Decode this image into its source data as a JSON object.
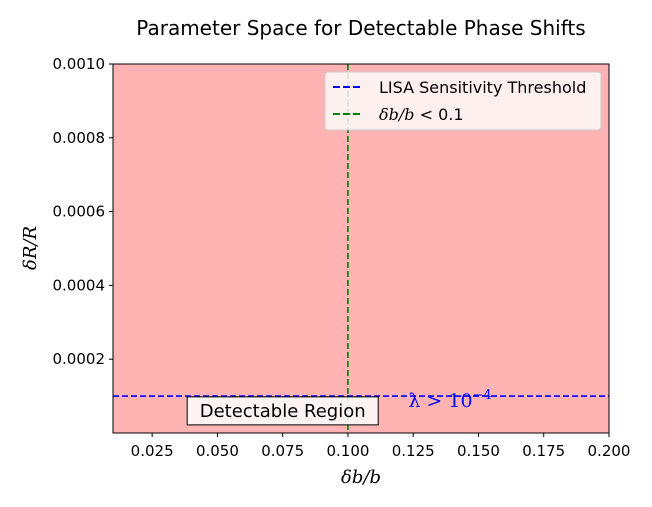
{
  "chart_data": {
    "type": "area",
    "title": "Parameter Space for Detectable Phase Shifts",
    "xlabel": "δb/b",
    "ylabel": "δR/R",
    "xlim": [
      0.01,
      0.2
    ],
    "ylim": [
      0.0,
      0.001
    ],
    "x_ticks": [
      0.025,
      0.05,
      0.075,
      0.1,
      0.125,
      0.15,
      0.175,
      0.2
    ],
    "x_tick_labels": [
      "0.025",
      "0.050",
      "0.075",
      "0.100",
      "0.125",
      "0.150",
      "0.175",
      "0.200"
    ],
    "y_ticks": [
      0.0002,
      0.0004,
      0.0006,
      0.0008,
      0.001
    ],
    "y_tick_labels": [
      "0.0002",
      "0.0004",
      "0.0006",
      "0.0008",
      "0.0010"
    ],
    "grid": false,
    "legend_position": "top-right",
    "shaded_region": {
      "x_range": [
        0.01,
        0.2
      ],
      "y_range": [
        0.0,
        0.001
      ],
      "color": "#ffb3b3"
    },
    "hlines": [
      {
        "name": "LISA Sensitivity Threshold",
        "y": 0.0001,
        "color": "#0000ff",
        "linestyle": "dashed"
      }
    ],
    "vlines": [
      {
        "name": "δb/b < 0.1",
        "x": 0.1,
        "color": "#008000",
        "linestyle": "dashed"
      }
    ],
    "legend": [
      {
        "label": "LISA Sensitivity Threshold",
        "color": "#0000ff",
        "style": "dashed"
      },
      {
        "label_math": "δb/b",
        "label_rest": " < 0.1",
        "color": "#008000",
        "style": "dashed"
      }
    ],
    "annotations": [
      {
        "text": "Detectable Region",
        "x": 0.075,
        "y": 6e-05,
        "boxed": true
      },
      {
        "text_base": "λ > 10",
        "text_exp": "−4",
        "x": 0.135,
        "y": 9e-05,
        "color": "#0000ff"
      }
    ]
  }
}
